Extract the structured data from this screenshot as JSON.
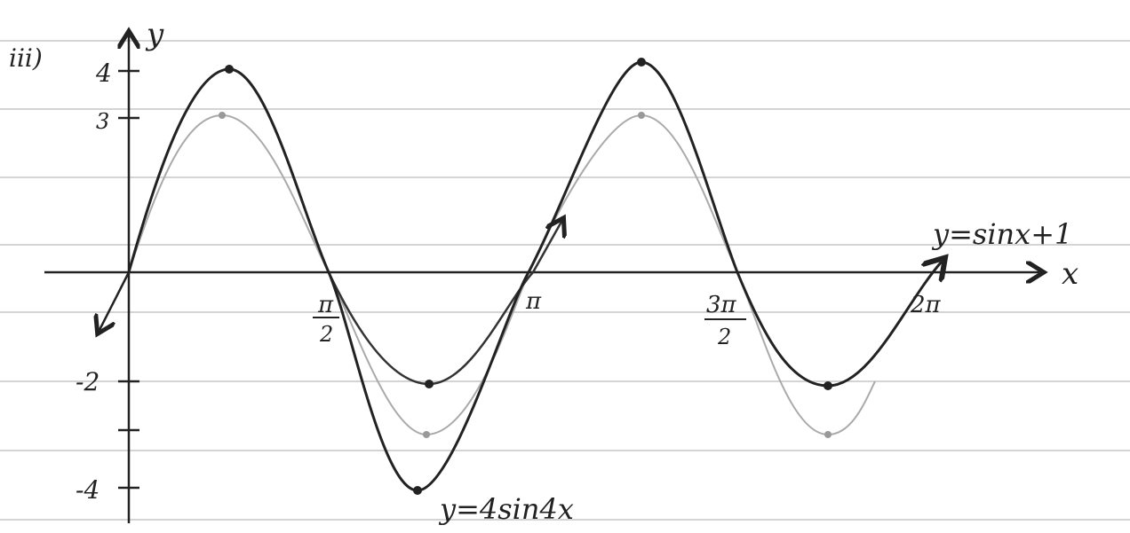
{
  "part_label": "iii)",
  "axes": {
    "y_label": "y",
    "x_label": "x"
  },
  "y_ticks": [
    "4",
    "3",
    "-2",
    "-4"
  ],
  "x_ticks": [
    {
      "numerator": "π",
      "denominator": "2"
    },
    {
      "label": "π"
    },
    {
      "numerator": "3π",
      "denominator": "2"
    },
    {
      "label": "2π"
    }
  ],
  "curves": [
    "y=sinx+1",
    "y=4sin4x"
  ]
}
